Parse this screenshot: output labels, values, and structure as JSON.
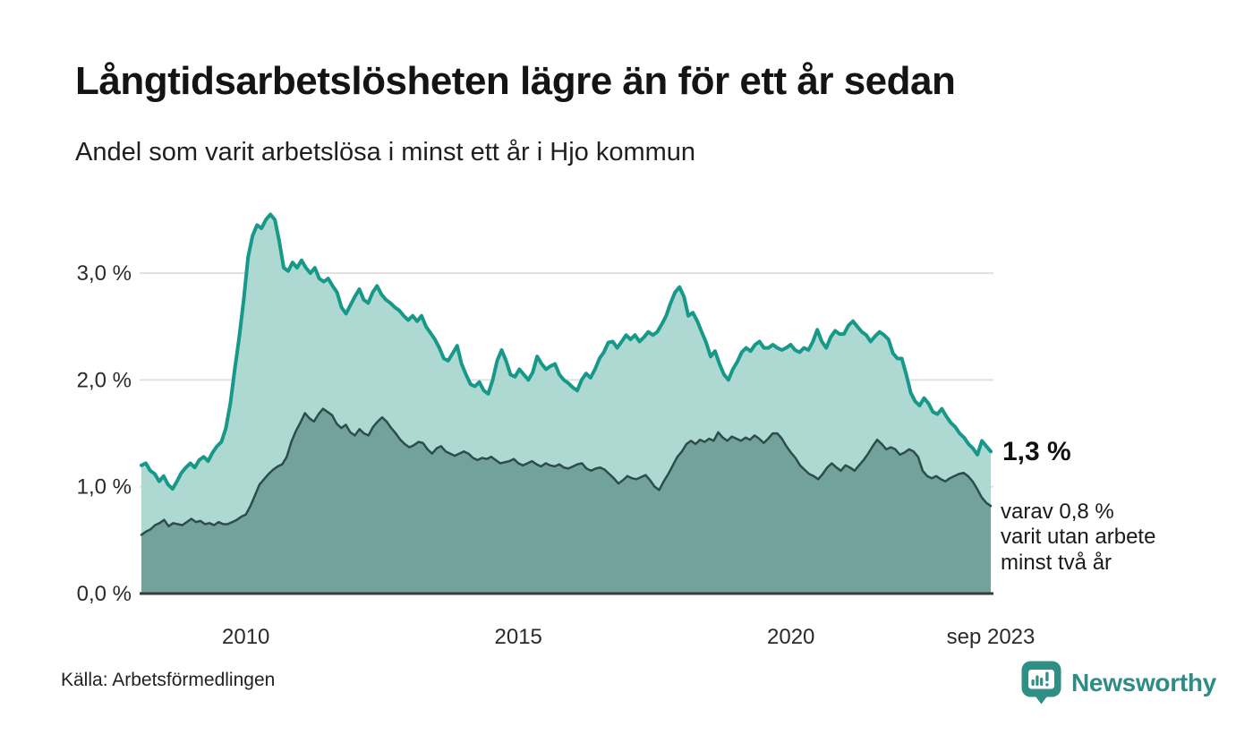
{
  "header": {
    "title": "Långtidsarbetslösheten lägre än för ett år sedan",
    "subtitle": "Andel som varit arbetslösa i minst ett år i Hjo kommun"
  },
  "annotations": {
    "latest_value": "1,3 %",
    "secondary_note": "varav 0,8 %\nvarit utan arbete\nminst två år"
  },
  "footer": {
    "source": "Källa: Arbetsförmedlingen",
    "brand": "Newsworthy"
  },
  "colors": {
    "title_text": "#141414",
    "body_text": "#1f1f1f",
    "axis_labels": "#2a2a2a",
    "gridline": "#e0e0e0",
    "axis_line": "#3a3a3a",
    "brand_teal": "#2e8c84",
    "series1_line": "#17998a",
    "series1_fill": "#aed8d2",
    "series2_line": "#2d4d48",
    "series2_fill": "#73a29c"
  },
  "chart_data": {
    "type": "area",
    "title": "Långtidsarbetslösheten lägre än för ett år sedan",
    "subtitle": "Andel som varit arbetslösa i minst ett år i Hjo kommun",
    "unit": "%",
    "grid": "horizontal",
    "legend_position": "none",
    "x_range": {
      "start": "2008-02",
      "end": "2023-09",
      "start_decimal": 2008.0833,
      "end_decimal": 2023.6667
    },
    "ylim": [
      0,
      3.72
    ],
    "y_ticks": [
      {
        "value": 0,
        "label": "0,0 %"
      },
      {
        "value": 1,
        "label": "1,0 %"
      },
      {
        "value": 2,
        "label": "2,0 %"
      },
      {
        "value": 3,
        "label": "3,0 %"
      }
    ],
    "x_ticks": [
      {
        "x": 2010,
        "label": "2010"
      },
      {
        "x": 2015,
        "label": "2015"
      },
      {
        "x": 2020,
        "label": "2020"
      },
      {
        "x": 2023.6667,
        "label": "sep 2023"
      }
    ],
    "series": [
      {
        "id": "unemployed-1yr-plus",
        "name": "Andel arbetslösa minst ett år",
        "latest_value_pct": 1.3,
        "line_color": "#17998a",
        "fill_color": "#aed8d2",
        "line_width": 4,
        "values": [
          1.2,
          1.22,
          1.15,
          1.12,
          1.05,
          1.1,
          1.02,
          0.98,
          1.05,
          1.13,
          1.18,
          1.22,
          1.18,
          1.25,
          1.28,
          1.24,
          1.32,
          1.38,
          1.42,
          1.55,
          1.78,
          2.1,
          2.4,
          2.75,
          3.15,
          3.35,
          3.45,
          3.42,
          3.5,
          3.55,
          3.5,
          3.3,
          3.05,
          3.02,
          3.1,
          3.05,
          3.12,
          3.05,
          3.0,
          3.05,
          2.95,
          2.92,
          2.95,
          2.88,
          2.82,
          2.68,
          2.62,
          2.7,
          2.78,
          2.85,
          2.75,
          2.72,
          2.82,
          2.88,
          2.8,
          2.75,
          2.72,
          2.68,
          2.65,
          2.6,
          2.56,
          2.6,
          2.55,
          2.6,
          2.5,
          2.44,
          2.38,
          2.3,
          2.2,
          2.18,
          2.25,
          2.32,
          2.15,
          2.05,
          1.96,
          1.94,
          1.98,
          1.9,
          1.87,
          2.0,
          2.18,
          2.28,
          2.18,
          2.05,
          2.03,
          2.1,
          2.05,
          2.0,
          2.07,
          2.22,
          2.15,
          2.1,
          2.13,
          2.15,
          2.05,
          2.0,
          1.97,
          1.93,
          1.9,
          2.0,
          2.06,
          2.02,
          2.1,
          2.2,
          2.26,
          2.35,
          2.36,
          2.3,
          2.36,
          2.42,
          2.38,
          2.42,
          2.36,
          2.4,
          2.45,
          2.42,
          2.45,
          2.52,
          2.6,
          2.72,
          2.82,
          2.87,
          2.78,
          2.6,
          2.63,
          2.55,
          2.45,
          2.35,
          2.22,
          2.27,
          2.15,
          2.05,
          2.0,
          2.1,
          2.17,
          2.26,
          2.3,
          2.27,
          2.33,
          2.36,
          2.3,
          2.3,
          2.33,
          2.3,
          2.28,
          2.3,
          2.33,
          2.28,
          2.26,
          2.3,
          2.28,
          2.36,
          2.47,
          2.36,
          2.3,
          2.4,
          2.46,
          2.43,
          2.43,
          2.51,
          2.55,
          2.5,
          2.45,
          2.42,
          2.36,
          2.41,
          2.45,
          2.42,
          2.38,
          2.25,
          2.2,
          2.2,
          2.05,
          1.88,
          1.8,
          1.76,
          1.83,
          1.78,
          1.7,
          1.68,
          1.73,
          1.66,
          1.6,
          1.56,
          1.5,
          1.46,
          1.4,
          1.36,
          1.3,
          1.43,
          1.38,
          1.33
        ]
      },
      {
        "id": "unemployed-2yr-plus",
        "name": "varav arbetslösa minst två år",
        "latest_value_pct": 0.8,
        "line_color": "#2d4d48",
        "fill_color": "#73a29c",
        "line_width": 2.5,
        "values": [
          0.55,
          0.58,
          0.6,
          0.64,
          0.66,
          0.69,
          0.63,
          0.66,
          0.65,
          0.64,
          0.67,
          0.7,
          0.67,
          0.68,
          0.65,
          0.66,
          0.64,
          0.67,
          0.65,
          0.65,
          0.67,
          0.69,
          0.72,
          0.74,
          0.82,
          0.92,
          1.02,
          1.07,
          1.12,
          1.16,
          1.19,
          1.21,
          1.28,
          1.42,
          1.52,
          1.6,
          1.69,
          1.64,
          1.61,
          1.68,
          1.73,
          1.7,
          1.67,
          1.59,
          1.55,
          1.58,
          1.51,
          1.48,
          1.54,
          1.5,
          1.48,
          1.56,
          1.61,
          1.65,
          1.61,
          1.55,
          1.5,
          1.44,
          1.4,
          1.37,
          1.39,
          1.42,
          1.41,
          1.35,
          1.31,
          1.36,
          1.38,
          1.33,
          1.31,
          1.29,
          1.31,
          1.33,
          1.31,
          1.27,
          1.25,
          1.27,
          1.26,
          1.28,
          1.25,
          1.22,
          1.23,
          1.24,
          1.26,
          1.22,
          1.2,
          1.22,
          1.24,
          1.21,
          1.19,
          1.22,
          1.2,
          1.19,
          1.21,
          1.18,
          1.17,
          1.19,
          1.21,
          1.22,
          1.17,
          1.15,
          1.17,
          1.18,
          1.16,
          1.12,
          1.08,
          1.03,
          1.06,
          1.1,
          1.08,
          1.07,
          1.09,
          1.11,
          1.06,
          1.0,
          0.97,
          1.05,
          1.12,
          1.2,
          1.28,
          1.33,
          1.4,
          1.43,
          1.4,
          1.44,
          1.42,
          1.45,
          1.43,
          1.51,
          1.46,
          1.43,
          1.47,
          1.45,
          1.43,
          1.46,
          1.44,
          1.48,
          1.45,
          1.41,
          1.45,
          1.5,
          1.5,
          1.45,
          1.38,
          1.32,
          1.27,
          1.2,
          1.16,
          1.12,
          1.1,
          1.07,
          1.12,
          1.18,
          1.22,
          1.18,
          1.15,
          1.2,
          1.18,
          1.15,
          1.2,
          1.25,
          1.31,
          1.38,
          1.44,
          1.4,
          1.35,
          1.37,
          1.35,
          1.3,
          1.32,
          1.35,
          1.33,
          1.28,
          1.15,
          1.1,
          1.08,
          1.1,
          1.07,
          1.05,
          1.08,
          1.1,
          1.12,
          1.13,
          1.1,
          1.05,
          0.98,
          0.9,
          0.85,
          0.82
        ]
      }
    ]
  }
}
